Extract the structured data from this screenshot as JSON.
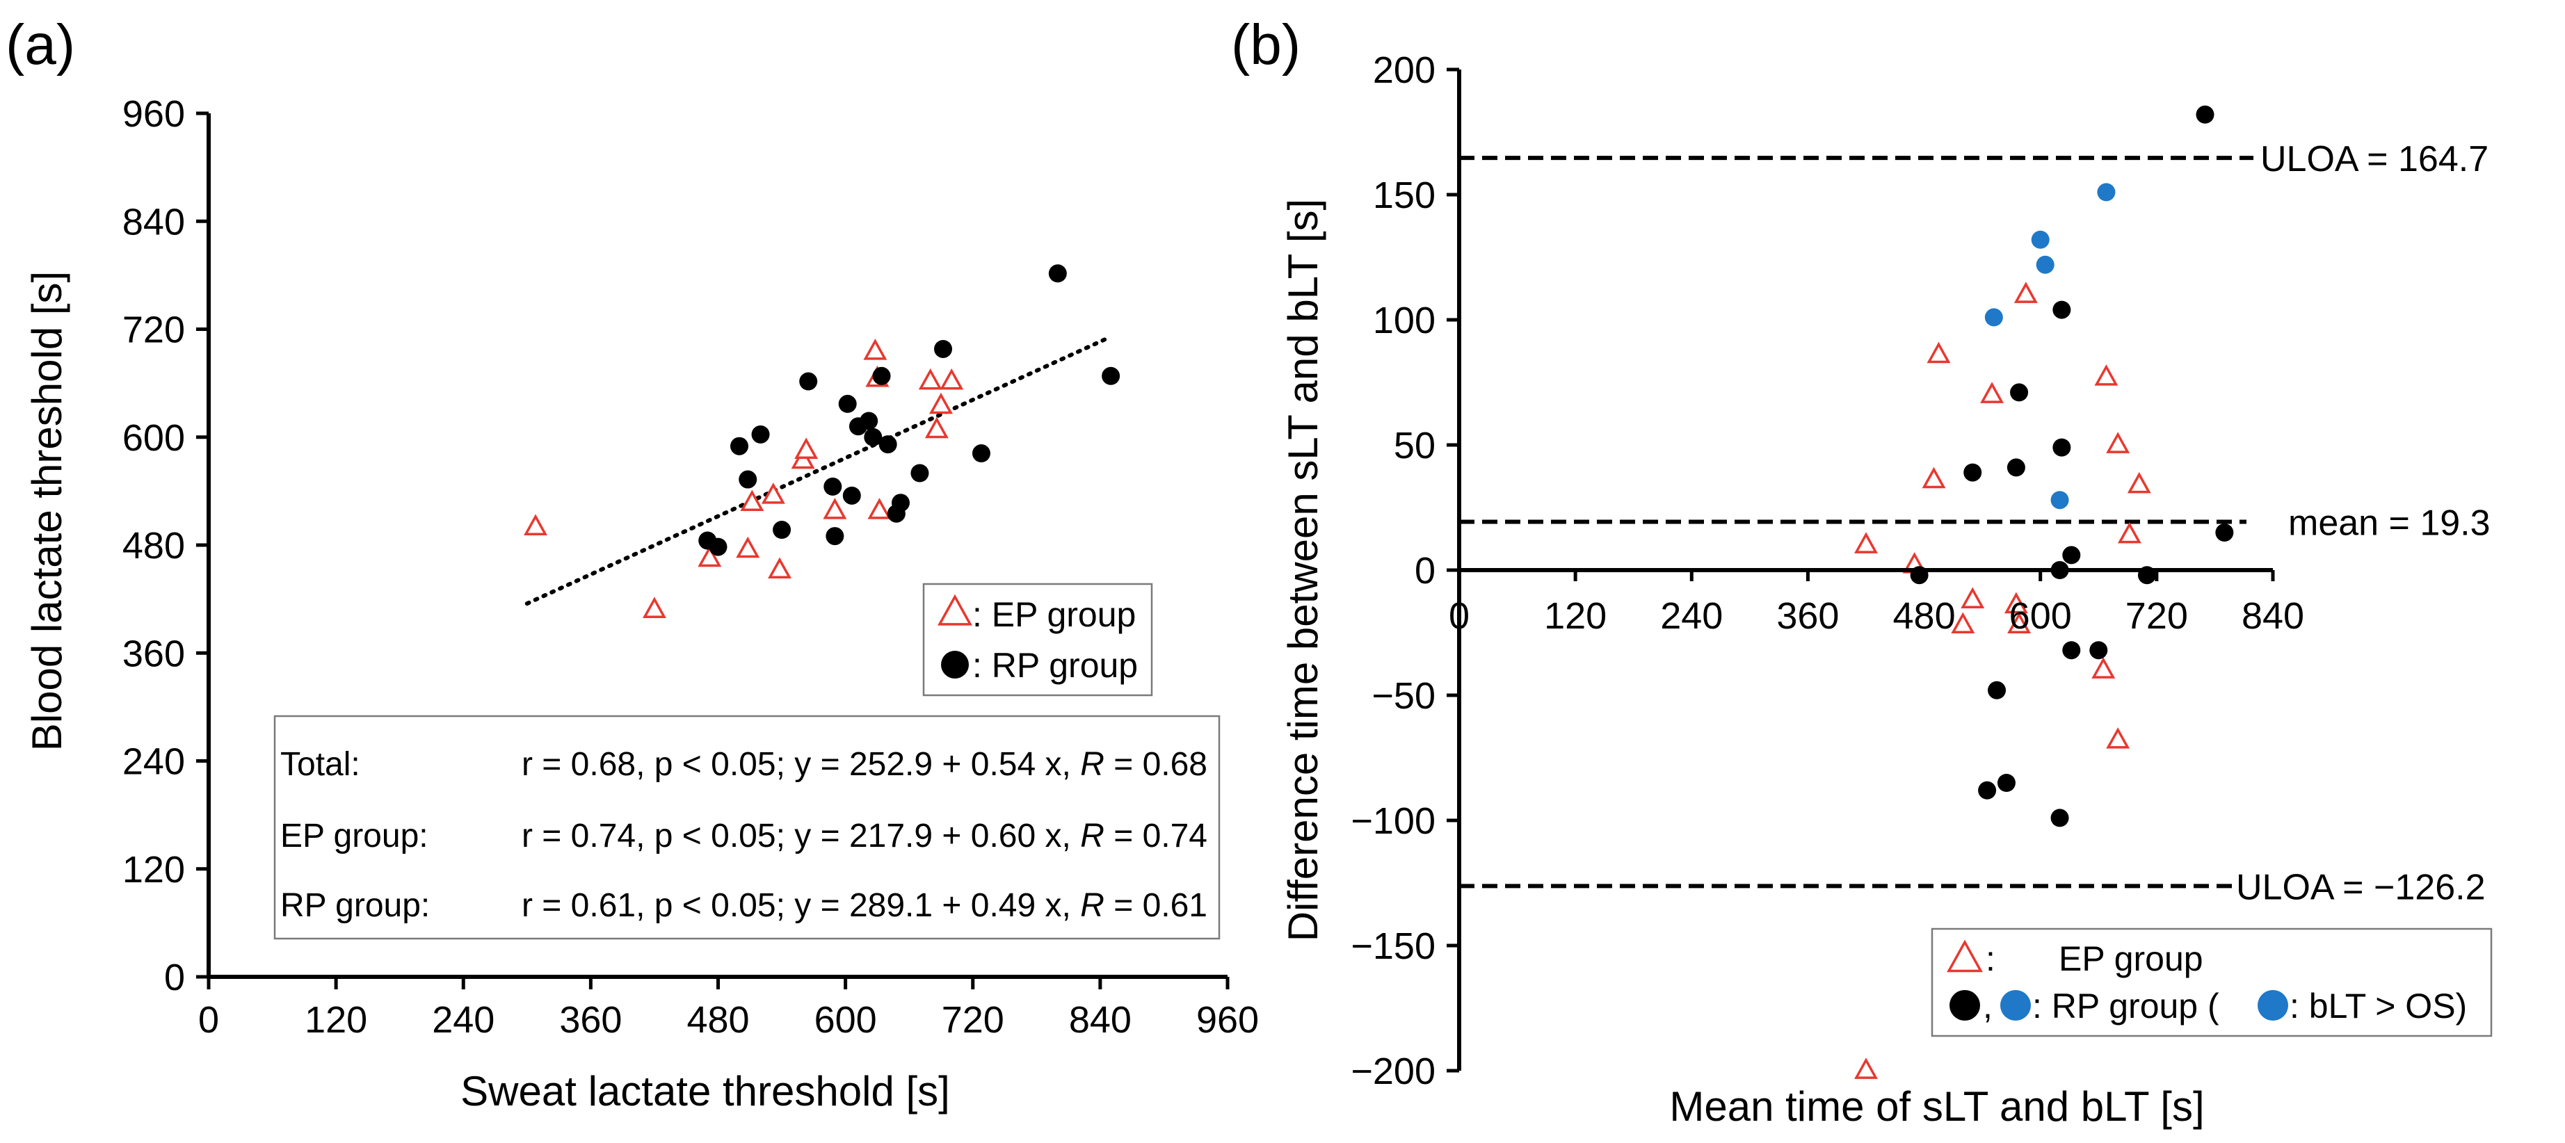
{
  "chart_data": [
    {
      "panel_label": "(a)",
      "type": "scatter",
      "xlabel": "Sweat lactate threshold [s]",
      "ylabel": "Blood lactate threshold [s]",
      "xlim": [
        0,
        960
      ],
      "ylim": [
        0,
        960
      ],
      "xticks": [
        0,
        120,
        240,
        360,
        480,
        600,
        720,
        840,
        960
      ],
      "yticks": [
        0,
        120,
        240,
        360,
        480,
        600,
        720,
        840,
        960
      ],
      "grid": false,
      "legend": {
        "placement": "right",
        "entries": [
          {
            "marker": "triangle",
            "color": "#e8382f",
            "label": ": EP group"
          },
          {
            "marker": "circle",
            "color": "#000000",
            "label": ": RP group"
          }
        ]
      },
      "series": [
        {
          "name": "EP group",
          "marker": "triangle",
          "color": "#e8382f",
          "points": [
            [
              308,
              500
            ],
            [
              420,
              408
            ],
            [
              472,
              465
            ],
            [
              508,
              475
            ],
            [
              512,
              527
            ],
            [
              532,
              535
            ],
            [
              538,
              452
            ],
            [
              560,
              574
            ],
            [
              563,
              585
            ],
            [
              590,
              518
            ],
            [
              628,
              695
            ],
            [
              630,
              665
            ],
            [
              632,
              518
            ],
            [
              680,
              662
            ],
            [
              686,
              608
            ],
            [
              690,
              635
            ],
            [
              700,
              662
            ]
          ]
        },
        {
          "name": "RP group",
          "marker": "circle",
          "color": "#000000",
          "points": [
            [
              470,
              485
            ],
            [
              480,
              478
            ],
            [
              500,
              590
            ],
            [
              508,
              553
            ],
            [
              520,
              603
            ],
            [
              540,
              497
            ],
            [
              565,
              662
            ],
            [
              588,
              545
            ],
            [
              590,
              490
            ],
            [
              602,
              637
            ],
            [
              606,
              535
            ],
            [
              612,
              612
            ],
            [
              622,
              618
            ],
            [
              626,
              600
            ],
            [
              634,
              668
            ],
            [
              640,
              592
            ],
            [
              648,
              515
            ],
            [
              652,
              527
            ],
            [
              670,
              560
            ],
            [
              692,
              698
            ],
            [
              728,
              582
            ],
            [
              800,
              782
            ],
            [
              850,
              668
            ]
          ]
        }
      ],
      "trendline": {
        "style": "dotted",
        "from": [
          300,
          415
        ],
        "to": [
          847,
          710
        ]
      },
      "stats_box": [
        {
          "label": "Total:",
          "text_pre": "r = 0.68, p < 0.05; y = 252.9 + 0.54 x, ",
          "italic": "R",
          "text_post": " = 0.68"
        },
        {
          "label": "EP group:",
          "text_pre": "r = 0.74, p < 0.05; y = 217.9 + 0.60 x, ",
          "italic": "R",
          "text_post": " = 0.74"
        },
        {
          "label": "RP group:",
          "text_pre": "r = 0.61, p < 0.05; y = 289.1 + 0.49 x, ",
          "italic": "R",
          "text_post": " = 0.61"
        }
      ]
    },
    {
      "panel_label": "(b)",
      "type": "scatter",
      "xlabel": "Mean time of sLT and bLT [s]",
      "ylabel": "Difference time between sLT and bLT [s]",
      "xlim": [
        0,
        840
      ],
      "ylim": [
        -200,
        200
      ],
      "xticks": [
        0,
        120,
        240,
        360,
        480,
        600,
        720,
        840
      ],
      "yticks": [
        -200,
        -150,
        -100,
        -50,
        0,
        50,
        100,
        150,
        200
      ],
      "grid": false,
      "reference_lines": [
        {
          "y": 164.7,
          "style": "dashed",
          "label": "ULOA = 164.7"
        },
        {
          "y": 19.3,
          "style": "dashed",
          "label": "mean = 19.3"
        },
        {
          "y": -126.2,
          "style": "dashed",
          "label": "ULOA = −126.2"
        }
      ],
      "legend": {
        "placement": "bottom-right",
        "entries": [
          {
            "marker": "triangle",
            "color": "#e8382f",
            "label": "EP group"
          },
          {
            "marker": "circle-pair",
            "colors": [
              "#000000",
              "#1f78c8"
            ],
            "label": ": RP group (",
            "sub_marker_color": "#1f78c8",
            "sub_label": ": bLT > OS)"
          }
        ]
      },
      "series": [
        {
          "name": "EP group",
          "marker": "triangle",
          "color": "#e8382f",
          "points": [
            [
              420,
              10
            ],
            [
              470,
              2
            ],
            [
              490,
              36
            ],
            [
              495,
              86
            ],
            [
              520,
              -22
            ],
            [
              530,
              -12
            ],
            [
              550,
              70
            ],
            [
              575,
              -14
            ],
            [
              578,
              -22
            ],
            [
              585,
              110
            ],
            [
              665,
              -40
            ],
            [
              668,
              77
            ],
            [
              680,
              50
            ],
            [
              680,
              -68
            ],
            [
              692,
              14
            ],
            [
              702,
              34
            ],
            [
              420,
              -200
            ]
          ]
        },
        {
          "name": "RP group",
          "marker": "circle",
          "color": "#000000",
          "points": [
            [
              475,
              -2
            ],
            [
              530,
              39
            ],
            [
              545,
              -88
            ],
            [
              555,
              -48
            ],
            [
              565,
              -85
            ],
            [
              575,
              41
            ],
            [
              578,
              71
            ],
            [
              620,
              0
            ],
            [
              620,
              -99
            ],
            [
              622,
              104
            ],
            [
              622,
              49
            ],
            [
              632,
              6
            ],
            [
              632,
              -32
            ],
            [
              660,
              -32
            ],
            [
              710,
              -2
            ],
            [
              790,
              15
            ],
            [
              770,
              182
            ]
          ]
        },
        {
          "name": "RP group (bLT > OS)",
          "marker": "circle",
          "color": "#1f78c8",
          "points": [
            [
              552,
              101
            ],
            [
              600,
              132
            ],
            [
              605,
              122
            ],
            [
              620,
              28
            ],
            [
              668,
              151
            ]
          ]
        }
      ]
    }
  ]
}
